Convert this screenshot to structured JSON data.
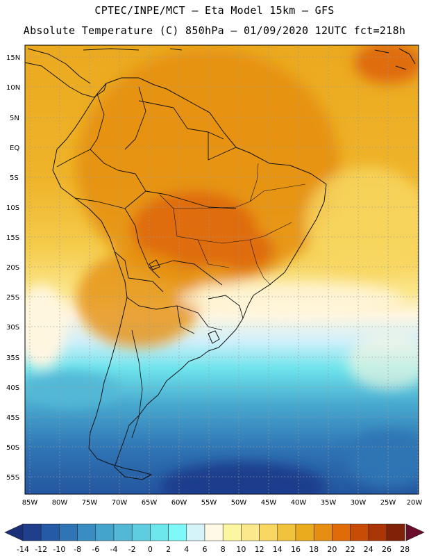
{
  "title_line1": "CPTEC/INPE/MCT –  Eta Model 15km – GFS",
  "title_line2": "Absolute Temperature (C) 850hPa – 01/09/2020 12UTC fct=218h",
  "lat_labels": [
    "15N",
    "10N",
    "5N",
    "EQ",
    "5S",
    "10S",
    "15S",
    "20S",
    "25S",
    "30S",
    "35S",
    "40S",
    "45S",
    "50S",
    "55S"
  ],
  "lon_labels": [
    "85W",
    "80W",
    "75W",
    "70W",
    "65W",
    "60W",
    "55W",
    "50W",
    "45W",
    "40W",
    "35W",
    "30W",
    "25W",
    "20W"
  ],
  "colorbar": {
    "labels": [
      "-14",
      "-12",
      "-10",
      "-8",
      "-6",
      "-4",
      "-2",
      "0",
      "2",
      "4",
      "6",
      "8",
      "10",
      "12",
      "14",
      "16",
      "18",
      "20",
      "22",
      "24",
      "26",
      "28"
    ],
    "colors": [
      "#1f3e8c",
      "#245aa6",
      "#2f74b4",
      "#3a8dc2",
      "#45a4cc",
      "#52b8d6",
      "#5ecde0",
      "#6de6ec",
      "#7ef8f8",
      "#d4f4fa",
      "#fff9e6",
      "#fdf6a0",
      "#fbe88a",
      "#f8d862",
      "#f1c33c",
      "#ebab1f",
      "#e58e12",
      "#df6c08",
      "#c94c06",
      "#aa3506",
      "#7f2208"
    ]
  }
}
